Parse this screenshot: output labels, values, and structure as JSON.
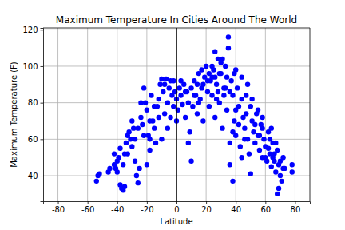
{
  "chart_data": {
    "type": "scatter",
    "title": "Maximum Temperature In Cities Around The World",
    "x_label": "Latitude",
    "y_label": "Maximum Temperature (F)",
    "color": "#0000ff",
    "marker": "o",
    "grid": true,
    "xlim": [
      -90,
      90
    ],
    "ylim": [
      26,
      121
    ],
    "xticks": [
      -80,
      -60,
      -40,
      -20,
      0,
      20,
      40,
      60,
      80
    ],
    "yticks": [
      40,
      60,
      80,
      100,
      120
    ],
    "vlines": [
      0
    ],
    "x": [
      -54,
      -53,
      -52,
      -46,
      -45,
      -42,
      -41,
      -40,
      -39,
      -38,
      -38,
      -37,
      -36,
      -35,
      -34,
      -33,
      -33,
      -32,
      -31,
      -30,
      -30,
      -29,
      -28,
      -27,
      -26,
      -25,
      -24,
      -23,
      -22,
      -21,
      -20,
      -19,
      -18,
      -17,
      -16,
      -15,
      -14,
      -13,
      -12,
      -11,
      -10,
      -9,
      -8,
      -7,
      -6,
      -5,
      -4,
      -3,
      -2,
      -1,
      0,
      1,
      2,
      3,
      4,
      5,
      6,
      7,
      8,
      9,
      10,
      11,
      12,
      13,
      14,
      15,
      16,
      17,
      18,
      19,
      20,
      21,
      22,
      23,
      24,
      25,
      26,
      27,
      28,
      29,
      30,
      31,
      32,
      33,
      34,
      35,
      35,
      36,
      36,
      37,
      38,
      38,
      39,
      40,
      40,
      41,
      42,
      43,
      44,
      45,
      46,
      47,
      48,
      49,
      50,
      50,
      51,
      52,
      53,
      54,
      55,
      56,
      57,
      58,
      59,
      60,
      61,
      62,
      63,
      64,
      65,
      66,
      67,
      68,
      69,
      70,
      71,
      72,
      73,
      78,
      78,
      68,
      69,
      24,
      18,
      22,
      26,
      30,
      32,
      34,
      -36,
      -35,
      -28,
      -26,
      -22,
      -18,
      -15,
      -12,
      -8,
      -4,
      3,
      6,
      12,
      14,
      17,
      21,
      27,
      29,
      33,
      36,
      39,
      42,
      44,
      47,
      51,
      53,
      56,
      58,
      60,
      63,
      66,
      67,
      70,
      72,
      -40,
      -42,
      -20,
      -18,
      10,
      8,
      44,
      46,
      38,
      40,
      28,
      24,
      -6,
      0,
      -2,
      58,
      62,
      64,
      65,
      55,
      48,
      26,
      31,
      15,
      -10,
      -24
    ],
    "values": [
      37,
      40,
      41,
      42,
      44,
      46,
      44,
      48,
      50,
      55,
      35,
      33,
      32,
      34,
      58,
      62,
      52,
      64,
      60,
      56,
      70,
      66,
      48,
      40,
      36,
      44,
      72,
      68,
      88,
      80,
      76,
      62,
      54,
      84,
      70,
      66,
      58,
      78,
      82,
      90,
      93,
      86,
      74,
      93,
      80,
      88,
      72,
      84,
      78,
      86,
      82,
      76,
      88,
      84,
      79,
      90,
      72,
      86,
      80,
      64,
      88,
      78,
      92,
      84,
      74,
      96,
      82,
      88,
      70,
      94,
      100,
      86,
      78,
      92,
      84,
      98,
      72,
      90,
      104,
      80,
      96,
      66,
      88,
      100,
      76,
      116,
      110,
      58,
      46,
      92,
      84,
      37,
      70,
      98,
      62,
      88,
      78,
      56,
      94,
      72,
      66,
      84,
      60,
      52,
      78,
      41,
      70,
      64,
      58,
      74,
      62,
      54,
      68,
      50,
      60,
      56,
      48,
      64,
      52,
      45,
      58,
      48,
      42,
      54,
      46,
      40,
      37,
      50,
      44,
      46,
      42,
      30,
      33,
      94,
      90,
      96,
      94,
      102,
      84,
      94,
      46,
      52,
      60,
      66,
      62,
      70,
      78,
      72,
      90,
      92,
      92,
      86,
      84,
      90,
      98,
      92,
      82,
      96,
      88,
      86,
      96,
      68,
      82,
      74,
      82,
      68,
      62,
      66,
      50,
      60,
      52,
      58,
      48,
      44,
      42,
      52,
      46,
      60,
      48,
      58,
      50,
      60,
      64,
      76,
      86,
      100,
      66,
      70,
      92,
      72,
      55,
      66,
      50,
      76,
      90,
      108,
      104,
      80,
      60,
      80
    ]
  }
}
